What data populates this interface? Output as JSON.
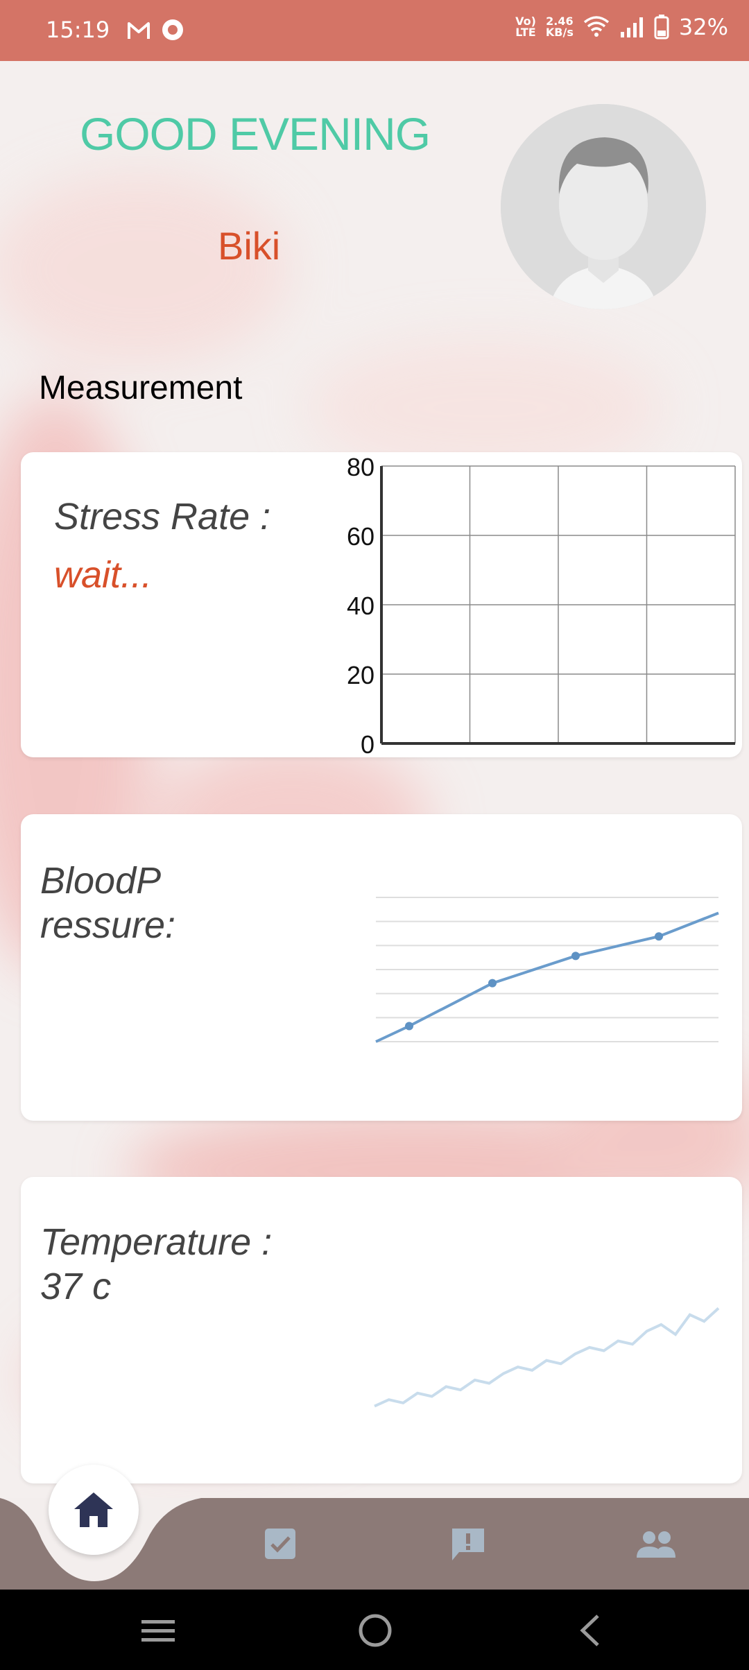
{
  "status_bar": {
    "time": "15:19",
    "volte_top": "Vo)",
    "volte_bottom": "LTE",
    "speed_top": "2.46",
    "speed_bottom": "KB/s",
    "battery_percent": "32%",
    "icons": [
      "gmail-icon",
      "record-icon",
      "volte-icon",
      "wifi-icon",
      "signal-icon",
      "battery-icon"
    ]
  },
  "header": {
    "greeting": "GOOD EVENING",
    "user_name": "Biki",
    "avatar_icon": "user-avatar-icon"
  },
  "section_title": "Measurement",
  "cards": {
    "stress": {
      "label": "Stress Rate   :",
      "value": "wait..."
    },
    "blood_pressure": {
      "label_line1": "BloodP",
      "label_line2": "ressure:"
    },
    "temperature": {
      "label_line1": "Temperature :",
      "label_line2": "37 c"
    }
  },
  "chart_data": [
    {
      "type": "line",
      "title": "",
      "yticks": [
        "0",
        "20",
        "40",
        "60",
        "80"
      ],
      "ylim": [
        0,
        80
      ],
      "grid": true,
      "series": []
    },
    {
      "type": "line",
      "title": "",
      "grid": true,
      "x": [
        1,
        2,
        3,
        4,
        5
      ],
      "series": [
        {
          "values": [
            22,
            33,
            40,
            45,
            51
          ]
        }
      ]
    },
    {
      "type": "line",
      "title": "",
      "grid": false,
      "series": [
        {
          "values": [
            10,
            12,
            11,
            14,
            13,
            16,
            15,
            18,
            17,
            20,
            22,
            21,
            24,
            23,
            26,
            28,
            27,
            30,
            29,
            33,
            35,
            32,
            38,
            36,
            40
          ]
        }
      ]
    }
  ],
  "bottom_nav": {
    "items": [
      {
        "icon": "home-icon",
        "active": true
      },
      {
        "icon": "task-check-icon",
        "active": false
      },
      {
        "icon": "alert-message-icon",
        "active": false
      },
      {
        "icon": "people-icon",
        "active": false
      }
    ],
    "bar_color": "#8c7a77",
    "active_icon_color": "#2e3456",
    "inactive_icon_color": "#a9b8c6"
  },
  "system_nav": {
    "icons": [
      "menu-icon",
      "home-circle-icon",
      "back-icon"
    ]
  }
}
